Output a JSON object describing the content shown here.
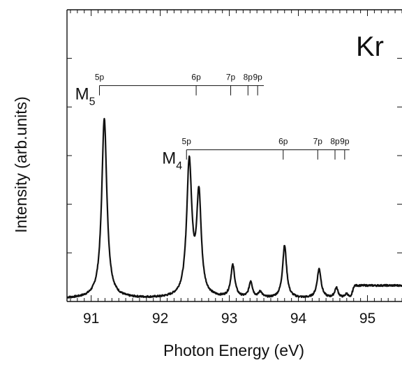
{
  "chart_data": {
    "type": "line",
    "element_label": "Kr",
    "xlabel": "Photon Energy  (eV)",
    "ylabel": "Intensity  (arb.units)",
    "xlim": [
      90.65,
      95.5
    ],
    "ylim": [
      0,
      1.0
    ],
    "x_ticks": [
      91,
      92,
      93,
      94,
      95
    ],
    "x_tick_labels": [
      "91",
      "92",
      "93",
      "94",
      "95"
    ],
    "y_ticks_labeled": false,
    "ladders": [
      {
        "label_main": "M",
        "label_sub": "5",
        "baseline": 0.74,
        "lines": [
          {
            "label": "5p",
            "x": 91.12
          },
          {
            "label": "6p",
            "x": 92.52
          },
          {
            "label": "7p",
            "x": 93.02
          },
          {
            "label": "8p",
            "x": 93.27
          },
          {
            "label": "9p",
            "x": 93.41
          }
        ],
        "end_x": 93.5
      },
      {
        "label_main": "M",
        "label_sub": "4",
        "baseline": 0.52,
        "lines": [
          {
            "label": "5p",
            "x": 92.38
          },
          {
            "label": "6p",
            "x": 93.78
          },
          {
            "label": "7p",
            "x": 94.28
          },
          {
            "label": "8p",
            "x": 94.53
          },
          {
            "label": "9p",
            "x": 94.67
          }
        ],
        "end_x": 94.74
      }
    ],
    "series": [
      {
        "baseline": 0.01,
        "peaks": [
          {
            "x": 91.19,
            "height": 0.615,
            "width": 0.045
          },
          {
            "x": 92.42,
            "height": 0.46,
            "width": 0.045
          },
          {
            "x": 92.56,
            "height": 0.34,
            "width": 0.04
          },
          {
            "x": 93.05,
            "height": 0.11,
            "width": 0.035
          },
          {
            "x": 93.31,
            "height": 0.055,
            "width": 0.03
          },
          {
            "x": 93.45,
            "height": 0.02,
            "width": 0.03
          },
          {
            "x": 93.8,
            "height": 0.18,
            "width": 0.035
          },
          {
            "x": 94.3,
            "height": 0.1,
            "width": 0.035
          },
          {
            "x": 94.55,
            "height": 0.035,
            "width": 0.03
          },
          {
            "x": 94.7,
            "height": 0.015,
            "width": 0.03
          }
        ],
        "shoulder": {
          "from": 94.75,
          "level": 0.055
        }
      }
    ]
  }
}
